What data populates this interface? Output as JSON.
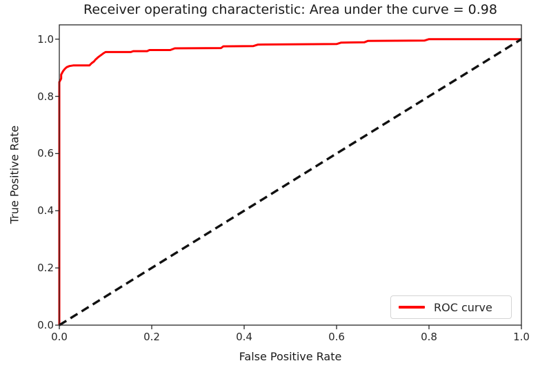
{
  "chart_data": {
    "type": "line",
    "title": "Receiver operating characteristic: Area under the curve = 0.98",
    "xlabel": "False Positive Rate",
    "ylabel": "True Positive Rate",
    "xlim": [
      0.0,
      1.0
    ],
    "ylim": [
      0.0,
      1.05
    ],
    "x_ticks": [
      0.0,
      0.2,
      0.4,
      0.6,
      0.8,
      1.0
    ],
    "x_tick_labels": [
      "0.0",
      "0.2",
      "0.4",
      "0.6",
      "0.8",
      "1.0"
    ],
    "y_ticks": [
      0.0,
      0.2,
      0.4,
      0.6,
      0.8,
      1.0
    ],
    "y_tick_labels": [
      "0.0",
      "0.2",
      "0.4",
      "0.6",
      "0.8",
      "1.0"
    ],
    "grid": false,
    "auc": 0.98,
    "colors": {
      "roc_curve": "#ff0000",
      "chance_line": "#111111",
      "spine": "#262626",
      "text": "#1a1a1a"
    },
    "legend": {
      "position": "lower right",
      "entries": [
        {
          "label": "ROC curve",
          "color": "#ff0000",
          "style": "solid"
        }
      ]
    },
    "series": [
      {
        "name": "ROC curve",
        "color": "#ff0000",
        "style": "solid",
        "points": [
          [
            0.0,
            0.0
          ],
          [
            0.0,
            0.85
          ],
          [
            0.004,
            0.862
          ],
          [
            0.004,
            0.876
          ],
          [
            0.008,
            0.888
          ],
          [
            0.012,
            0.896
          ],
          [
            0.016,
            0.902
          ],
          [
            0.022,
            0.906
          ],
          [
            0.03,
            0.908
          ],
          [
            0.065,
            0.908
          ],
          [
            0.07,
            0.916
          ],
          [
            0.075,
            0.922
          ],
          [
            0.078,
            0.928
          ],
          [
            0.085,
            0.938
          ],
          [
            0.09,
            0.944
          ],
          [
            0.095,
            0.95
          ],
          [
            0.1,
            0.955
          ],
          [
            0.155,
            0.955
          ],
          [
            0.16,
            0.958
          ],
          [
            0.19,
            0.958
          ],
          [
            0.195,
            0.962
          ],
          [
            0.24,
            0.962
          ],
          [
            0.25,
            0.968
          ],
          [
            0.35,
            0.969
          ],
          [
            0.355,
            0.975
          ],
          [
            0.42,
            0.976
          ],
          [
            0.43,
            0.981
          ],
          [
            0.6,
            0.983
          ],
          [
            0.61,
            0.988
          ],
          [
            0.66,
            0.989
          ],
          [
            0.668,
            0.994
          ],
          [
            0.79,
            0.995
          ],
          [
            0.8,
            1.0
          ],
          [
            1.0,
            1.0
          ]
        ]
      },
      {
        "name": "chance",
        "color": "#111111",
        "style": "dashed",
        "points": [
          [
            0.0,
            0.0
          ],
          [
            1.0,
            1.0
          ]
        ]
      }
    ]
  }
}
